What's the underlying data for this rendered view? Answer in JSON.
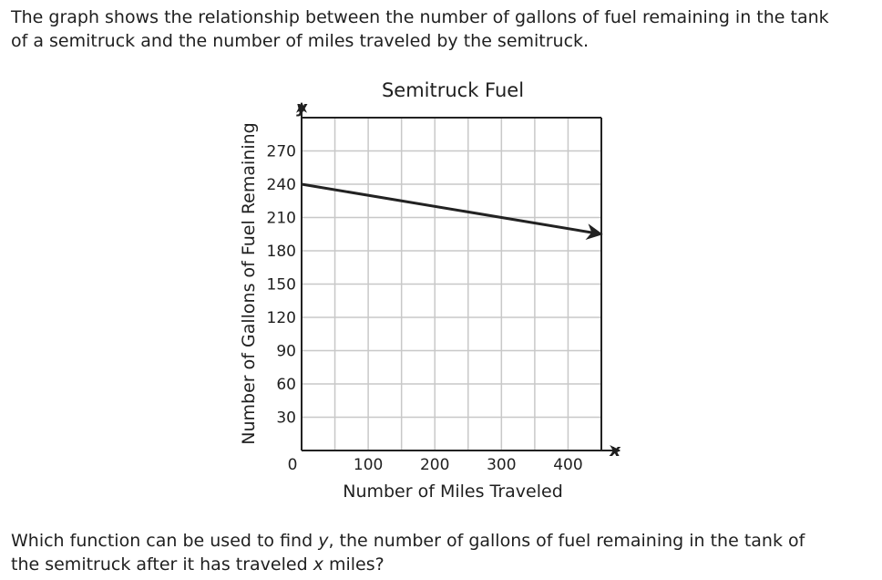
{
  "intro": {
    "line1": "The graph shows the relationship between the number of gallons of fuel remaining in the tank",
    "line2": "of a semitruck and the number of miles traveled by the semitruck."
  },
  "question": {
    "part1": "Which function can be used to find ",
    "var_y": "y",
    "part2": ", the number of gallons of fuel remaining in the tank of",
    "part3": "the semitruck after it has traveled ",
    "var_x": "x",
    "part4": " miles?"
  },
  "chart_data": {
    "type": "line",
    "title": "Semitruck Fuel",
    "xlabel": "Number of Miles Traveled",
    "ylabel": "Number of Gallons of Fuel Remaining",
    "x_axis_var": "x",
    "y_axis_var": "y",
    "origin_label": "0",
    "xlim": [
      0,
      450
    ],
    "ylim": [
      0,
      300
    ],
    "x_grid_step": 50,
    "y_grid_step": 30,
    "x_ticks": [
      {
        "value": 100,
        "label": "100"
      },
      {
        "value": 200,
        "label": "200"
      },
      {
        "value": 300,
        "label": "300"
      },
      {
        "value": 400,
        "label": "400"
      }
    ],
    "y_ticks": [
      {
        "value": 30,
        "label": "30"
      },
      {
        "value": 60,
        "label": "60"
      },
      {
        "value": 90,
        "label": "90"
      },
      {
        "value": 120,
        "label": "120"
      },
      {
        "value": 150,
        "label": "150"
      },
      {
        "value": 180,
        "label": "180"
      },
      {
        "value": 210,
        "label": "210"
      },
      {
        "value": 240,
        "label": "240"
      },
      {
        "value": 270,
        "label": "270"
      }
    ],
    "grid": true,
    "series": [
      {
        "x": [
          0,
          450
        ],
        "y": [
          240,
          195
        ],
        "arrow_end": true
      }
    ],
    "colors": {
      "line": "#222222",
      "grid": "#c8c8c8",
      "axis": "#222222"
    }
  }
}
